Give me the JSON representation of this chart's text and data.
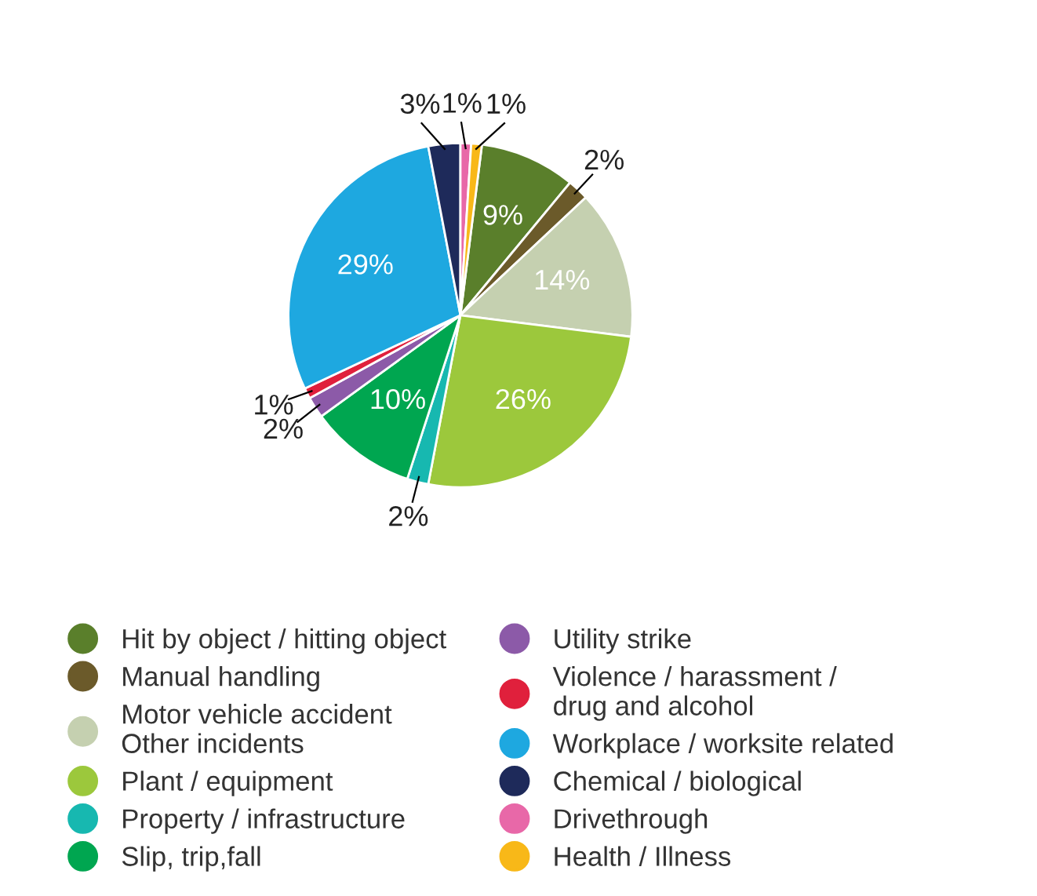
{
  "chart_data": {
    "type": "pie",
    "categories": [
      "Hit by object / hitting object",
      "Manual handling",
      "Motor vehicle accident\nOther incidents",
      "Plant / equipment",
      "Property / infrastructure",
      "Slip, trip,fall",
      "Utility strike",
      "Violence / harassment /\ndrug and alcohol",
      "Workplace / worksite related",
      "Chemical / biological",
      "Drivethrough",
      "Health / Illness"
    ],
    "values": [
      9,
      2,
      14,
      26,
      2,
      10,
      2,
      1,
      29,
      3,
      1,
      1
    ],
    "colors": [
      "#5a7f2b",
      "#6b5a2a",
      "#c5d0b0",
      "#9cc83c",
      "#17b8b0",
      "#00a650",
      "#8c5aa8",
      "#e0203c",
      "#1ea8e0",
      "#1e2a5a",
      "#e868a8",
      "#f8b818"
    ],
    "value_labels": [
      "9%",
      "2%",
      "14%",
      "26%",
      "2%",
      "10%",
      "2%",
      "1%",
      "29%",
      "3%",
      "1%",
      "1%"
    ],
    "legend": "bottom"
  }
}
